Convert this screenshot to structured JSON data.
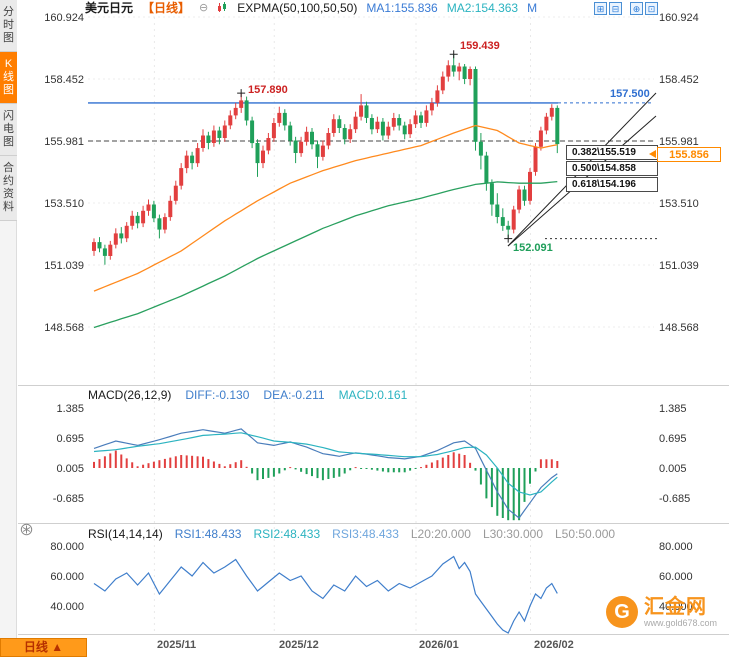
{
  "header": {
    "symbol": "美元日元",
    "period": "【日线】",
    "collapse_glyph": "⊖",
    "indicator_label": "EXPMA(50,100,50,50)",
    "ma1_label": "MA1:155.836",
    "ma2_label": "MA2:154.363",
    "truncated_label": "M",
    "toolbar": [
      {
        "name": "zoom-in",
        "glyph": "⊞"
      },
      {
        "name": "zoom-out",
        "glyph": "⊟"
      },
      {
        "name": "area-zoom",
        "glyph": "⊕"
      },
      {
        "name": "fullscreen",
        "glyph": "⊡"
      }
    ]
  },
  "sidebar": {
    "tabs": [
      {
        "label": "分时图",
        "active": false
      },
      {
        "label": "K线图",
        "active": true
      },
      {
        "label": "闪电图",
        "active": false
      },
      {
        "label": "合约资料",
        "active": false
      }
    ]
  },
  "main_panel": {
    "axis_values": [
      "160.924",
      "158.452",
      "155.981",
      "153.510",
      "151.039",
      "148.568"
    ],
    "resistance_label": "157.500",
    "current_price": "155.856",
    "annotations": {
      "peak1": "157.890",
      "peak2": "159.439",
      "low": "152.091"
    },
    "fib_levels": [
      {
        "label": "0.382\\155.519"
      },
      {
        "label": "0.500\\154.858"
      },
      {
        "label": "0.618\\154.196"
      }
    ]
  },
  "macd_panel": {
    "title": "MACD(26,12,9)",
    "diff_label": "DIFF:-0.130",
    "dea_label": "DEA:-0.211",
    "macd_label": "MACD:0.161",
    "axis_values": [
      "1.385",
      "0.695",
      "0.005",
      "-0.685"
    ]
  },
  "rsi_panel": {
    "title": "RSI(14,14,14)",
    "rsi1_label": "RSI1:48.433",
    "rsi2_label": "RSI2:48.433",
    "rsi3_label": "RSI3:48.433",
    "l20_label": "L20:20.000",
    "l30_label": "L30:30.000",
    "l50_label": "L50:50.000",
    "axis_values": [
      "80.000",
      "60.000",
      "40.000"
    ]
  },
  "footer": {
    "period_tab": "日线 ▲",
    "months": [
      "2025/11",
      "2025/12",
      "2026/01",
      "2026/02"
    ],
    "logo_glyph": "G",
    "logo_text": "汇金网",
    "logo_sub": "www.gold678.com"
  },
  "colors": {
    "up": "#e23f3f",
    "down": "#1fa05a",
    "ma1": "#ff8a1e",
    "ma2": "#2aa05f",
    "blue": "#3a7bd5",
    "cyan": "#2bb3c0",
    "resistance": "#2f6fd0",
    "accent": "#ff8a00"
  },
  "chart_data": {
    "type": "candlestick",
    "symbol": "USDJPY (美元日元)",
    "period": "daily",
    "ylim": [
      148.568,
      160.924
    ],
    "price_axis": [
      160.924,
      158.452,
      155.981,
      153.51,
      151.039,
      148.568
    ],
    "x_axis_months": [
      {
        "label": "2025/11",
        "index": 12
      },
      {
        "label": "2025/12",
        "index": 34
      },
      {
        "label": "2026/01",
        "index": 60
      },
      {
        "label": "2026/02",
        "index": 81
      }
    ],
    "levels": {
      "resistance": 157.5,
      "dashed": 155.981,
      "low_dashed": 152.091,
      "current": 155.856
    },
    "ema_current": {
      "ma1": 155.836,
      "ma2": 154.363
    },
    "fib": [
      {
        "ratio": 0.382,
        "price": 155.519
      },
      {
        "ratio": 0.5,
        "price": 154.858
      },
      {
        "ratio": 0.618,
        "price": 154.196
      }
    ],
    "marks": {
      "high1": {
        "index": 27,
        "price": 157.89
      },
      "high2": {
        "index": 66,
        "price": 159.439
      },
      "low": {
        "index": 76,
        "price": 152.091
      }
    },
    "candles_ohlc": [
      [
        151.6,
        152.1,
        151.4,
        151.95
      ],
      [
        151.95,
        152.15,
        151.55,
        151.7
      ],
      [
        151.7,
        151.85,
        151.05,
        151.4
      ],
      [
        151.4,
        152.0,
        151.25,
        151.85
      ],
      [
        151.85,
        152.5,
        151.7,
        152.3
      ],
      [
        152.3,
        152.55,
        151.9,
        152.1
      ],
      [
        152.1,
        152.75,
        151.95,
        152.6
      ],
      [
        152.6,
        153.2,
        152.45,
        153.0
      ],
      [
        153.0,
        153.15,
        152.5,
        152.7
      ],
      [
        152.7,
        153.4,
        152.55,
        153.2
      ],
      [
        153.2,
        153.65,
        153.0,
        153.45
      ],
      [
        153.45,
        153.6,
        152.75,
        152.9
      ],
      [
        152.9,
        153.05,
        152.1,
        152.45
      ],
      [
        152.45,
        153.1,
        152.3,
        152.95
      ],
      [
        152.95,
        153.8,
        152.8,
        153.6
      ],
      [
        153.6,
        154.4,
        153.45,
        154.2
      ],
      [
        154.2,
        155.1,
        154.05,
        154.9
      ],
      [
        154.9,
        155.6,
        154.7,
        155.4
      ],
      [
        155.4,
        155.55,
        154.85,
        155.1
      ],
      [
        155.1,
        155.9,
        154.95,
        155.7
      ],
      [
        155.7,
        156.45,
        155.55,
        156.2
      ],
      [
        156.2,
        156.35,
        155.65,
        155.9
      ],
      [
        155.9,
        156.6,
        155.75,
        156.4
      ],
      [
        156.4,
        156.55,
        155.85,
        156.1
      ],
      [
        156.1,
        156.8,
        155.95,
        156.6
      ],
      [
        156.6,
        157.2,
        156.45,
        157.0
      ],
      [
        157.0,
        157.5,
        156.85,
        157.3
      ],
      [
        157.3,
        157.89,
        157.1,
        157.6
      ],
      [
        157.6,
        157.75,
        156.6,
        156.8
      ],
      [
        156.8,
        156.95,
        155.7,
        155.9
      ],
      [
        155.9,
        156.05,
        154.55,
        155.1
      ],
      [
        155.1,
        155.8,
        154.9,
        155.6
      ],
      [
        155.6,
        156.3,
        155.45,
        156.1
      ],
      [
        156.1,
        156.9,
        155.95,
        156.7
      ],
      [
        156.7,
        157.35,
        156.55,
        157.1
      ],
      [
        157.1,
        157.25,
        156.4,
        156.6
      ],
      [
        156.6,
        156.75,
        155.8,
        156.0
      ],
      [
        156.0,
        156.15,
        155.1,
        155.5
      ],
      [
        155.5,
        156.15,
        155.35,
        155.95
      ],
      [
        155.95,
        156.55,
        155.8,
        156.35
      ],
      [
        156.35,
        156.5,
        155.65,
        155.85
      ],
      [
        155.85,
        156.0,
        154.9,
        155.35
      ],
      [
        155.35,
        156.0,
        155.2,
        155.8
      ],
      [
        155.8,
        156.5,
        155.65,
        156.3
      ],
      [
        156.3,
        157.05,
        156.15,
        156.85
      ],
      [
        156.85,
        157.0,
        156.3,
        156.5
      ],
      [
        156.5,
        156.65,
        155.85,
        156.05
      ],
      [
        156.05,
        156.65,
        155.9,
        156.45
      ],
      [
        156.45,
        157.15,
        156.3,
        156.95
      ],
      [
        156.95,
        157.85,
        156.8,
        157.4
      ],
      [
        157.4,
        157.55,
        156.7,
        156.9
      ],
      [
        156.9,
        157.05,
        156.25,
        156.45
      ],
      [
        156.45,
        156.95,
        156.3,
        156.75
      ],
      [
        156.75,
        156.9,
        156.0,
        156.2
      ],
      [
        156.2,
        156.75,
        156.05,
        156.55
      ],
      [
        156.55,
        157.1,
        156.4,
        156.9
      ],
      [
        156.9,
        157.05,
        156.4,
        156.6
      ],
      [
        156.6,
        156.75,
        156.05,
        156.25
      ],
      [
        156.25,
        156.85,
        156.1,
        156.65
      ],
      [
        156.65,
        157.2,
        156.5,
        157.0
      ],
      [
        157.0,
        157.15,
        156.5,
        156.7
      ],
      [
        156.7,
        157.4,
        156.55,
        157.2
      ],
      [
        157.2,
        157.7,
        157.0,
        157.5
      ],
      [
        157.5,
        158.2,
        157.35,
        158.0
      ],
      [
        158.0,
        158.75,
        157.85,
        158.55
      ],
      [
        158.55,
        159.2,
        158.35,
        159.0
      ],
      [
        159.0,
        159.439,
        158.55,
        158.75
      ],
      [
        158.75,
        159.1,
        158.4,
        158.95
      ],
      [
        158.95,
        159.05,
        158.25,
        158.45
      ],
      [
        158.45,
        158.95,
        158.2,
        158.85
      ],
      [
        158.85,
        158.95,
        155.6,
        155.95
      ],
      [
        155.95,
        156.3,
        154.85,
        155.4
      ],
      [
        155.4,
        155.55,
        154.0,
        154.3
      ],
      [
        154.3,
        154.45,
        153.0,
        153.45
      ],
      [
        153.45,
        153.9,
        152.7,
        152.95
      ],
      [
        152.95,
        153.3,
        152.4,
        152.6
      ],
      [
        152.6,
        152.8,
        152.091,
        152.45
      ],
      [
        152.45,
        153.4,
        152.3,
        153.25
      ],
      [
        153.25,
        154.2,
        153.1,
        154.05
      ],
      [
        154.05,
        154.2,
        153.4,
        153.6
      ],
      [
        153.6,
        154.9,
        153.45,
        154.75
      ],
      [
        154.75,
        155.9,
        154.6,
        155.75
      ],
      [
        155.75,
        156.55,
        155.6,
        156.4
      ],
      [
        156.4,
        157.1,
        156.25,
        156.95
      ],
      [
        156.95,
        157.45,
        156.8,
        157.3
      ],
      [
        157.3,
        157.4,
        155.5,
        155.856
      ]
    ],
    "ema_fast_anchors": [
      [
        0,
        150.0
      ],
      [
        8,
        150.7
      ],
      [
        16,
        151.6
      ],
      [
        24,
        152.8
      ],
      [
        30,
        153.6
      ],
      [
        36,
        154.3
      ],
      [
        42,
        154.8
      ],
      [
        48,
        155.2
      ],
      [
        54,
        155.5
      ],
      [
        60,
        155.8
      ],
      [
        66,
        156.3
      ],
      [
        70,
        156.6
      ],
      [
        74,
        156.4
      ],
      [
        78,
        155.9
      ],
      [
        82,
        155.7
      ],
      [
        85,
        155.836
      ]
    ],
    "ema_slow_anchors": [
      [
        0,
        148.55
      ],
      [
        8,
        149.1
      ],
      [
        16,
        149.8
      ],
      [
        24,
        150.6
      ],
      [
        30,
        151.3
      ],
      [
        36,
        151.9
      ],
      [
        42,
        152.5
      ],
      [
        48,
        153.0
      ],
      [
        54,
        153.4
      ],
      [
        60,
        153.7
      ],
      [
        66,
        154.05
      ],
      [
        70,
        154.25
      ],
      [
        74,
        154.35
      ],
      [
        78,
        154.3
      ],
      [
        82,
        154.3
      ],
      [
        85,
        154.363
      ]
    ],
    "macd": {
      "current": {
        "diff": -0.13,
        "dea": -0.211,
        "macd": 0.161
      },
      "hist_rule": "2*(diff-dea)",
      "axis": [
        1.385,
        0.695,
        0.005,
        -0.685
      ],
      "diff_anchors": [
        [
          0,
          0.45
        ],
        [
          4,
          0.62
        ],
        [
          8,
          0.52
        ],
        [
          12,
          0.65
        ],
        [
          16,
          0.8
        ],
        [
          20,
          0.88
        ],
        [
          24,
          0.8
        ],
        [
          27,
          0.9
        ],
        [
          30,
          0.58
        ],
        [
          33,
          0.52
        ],
        [
          36,
          0.6
        ],
        [
          39,
          0.48
        ],
        [
          42,
          0.33
        ],
        [
          45,
          0.27
        ],
        [
          48,
          0.35
        ],
        [
          51,
          0.3
        ],
        [
          54,
          0.24
        ],
        [
          57,
          0.21
        ],
        [
          60,
          0.27
        ],
        [
          63,
          0.4
        ],
        [
          66,
          0.58
        ],
        [
          68,
          0.62
        ],
        [
          70,
          0.45
        ],
        [
          72,
          -0.05
        ],
        [
          74,
          -0.55
        ],
        [
          76,
          -0.95
        ],
        [
          78,
          -1.15
        ],
        [
          80,
          -0.8
        ],
        [
          82,
          -0.45
        ],
        [
          84,
          -0.22
        ],
        [
          85,
          -0.13
        ]
      ],
      "dea_anchors": [
        [
          0,
          0.38
        ],
        [
          4,
          0.42
        ],
        [
          8,
          0.5
        ],
        [
          12,
          0.56
        ],
        [
          16,
          0.65
        ],
        [
          20,
          0.75
        ],
        [
          24,
          0.78
        ],
        [
          27,
          0.81
        ],
        [
          30,
          0.72
        ],
        [
          33,
          0.62
        ],
        [
          36,
          0.59
        ],
        [
          39,
          0.55
        ],
        [
          42,
          0.47
        ],
        [
          45,
          0.37
        ],
        [
          48,
          0.34
        ],
        [
          51,
          0.32
        ],
        [
          54,
          0.29
        ],
        [
          57,
          0.26
        ],
        [
          60,
          0.26
        ],
        [
          63,
          0.31
        ],
        [
          66,
          0.4
        ],
        [
          68,
          0.47
        ],
        [
          70,
          0.48
        ],
        [
          72,
          0.3
        ],
        [
          74,
          0.0
        ],
        [
          76,
          -0.35
        ],
        [
          78,
          -0.55
        ],
        [
          80,
          -0.62
        ],
        [
          82,
          -0.55
        ],
        [
          84,
          -0.32
        ],
        [
          85,
          -0.211
        ]
      ]
    },
    "rsi": {
      "current": {
        "rsi1": 48.433,
        "rsi2": 48.433,
        "rsi3": 48.433,
        "l20": 20.0,
        "l30": 30.0,
        "l50": 50.0
      },
      "axis": [
        80,
        60,
        40
      ],
      "anchors": [
        [
          0,
          55
        ],
        [
          2,
          50
        ],
        [
          4,
          58
        ],
        [
          6,
          62
        ],
        [
          8,
          54
        ],
        [
          10,
          62
        ],
        [
          12,
          48
        ],
        [
          14,
          57
        ],
        [
          16,
          66
        ],
        [
          18,
          60
        ],
        [
          20,
          69
        ],
        [
          22,
          62
        ],
        [
          24,
          66
        ],
        [
          26,
          71
        ],
        [
          28,
          60
        ],
        [
          30,
          50
        ],
        [
          32,
          56
        ],
        [
          34,
          62
        ],
        [
          36,
          57
        ],
        [
          38,
          60
        ],
        [
          40,
          50
        ],
        [
          42,
          45
        ],
        [
          44,
          54
        ],
        [
          46,
          50
        ],
        [
          48,
          60
        ],
        [
          50,
          53
        ],
        [
          52,
          57
        ],
        [
          54,
          50
        ],
        [
          56,
          55
        ],
        [
          58,
          52
        ],
        [
          60,
          56
        ],
        [
          62,
          60
        ],
        [
          64,
          68
        ],
        [
          66,
          73
        ],
        [
          67,
          65
        ],
        [
          68,
          69
        ],
        [
          69,
          63
        ],
        [
          70,
          48
        ],
        [
          72,
          38
        ],
        [
          74,
          28
        ],
        [
          76,
          20
        ],
        [
          77,
          30
        ],
        [
          78,
          36
        ],
        [
          79,
          30
        ],
        [
          80,
          40
        ],
        [
          81,
          48
        ],
        [
          82,
          45
        ],
        [
          83,
          52
        ],
        [
          84,
          55
        ],
        [
          85,
          48.433
        ]
      ]
    }
  }
}
